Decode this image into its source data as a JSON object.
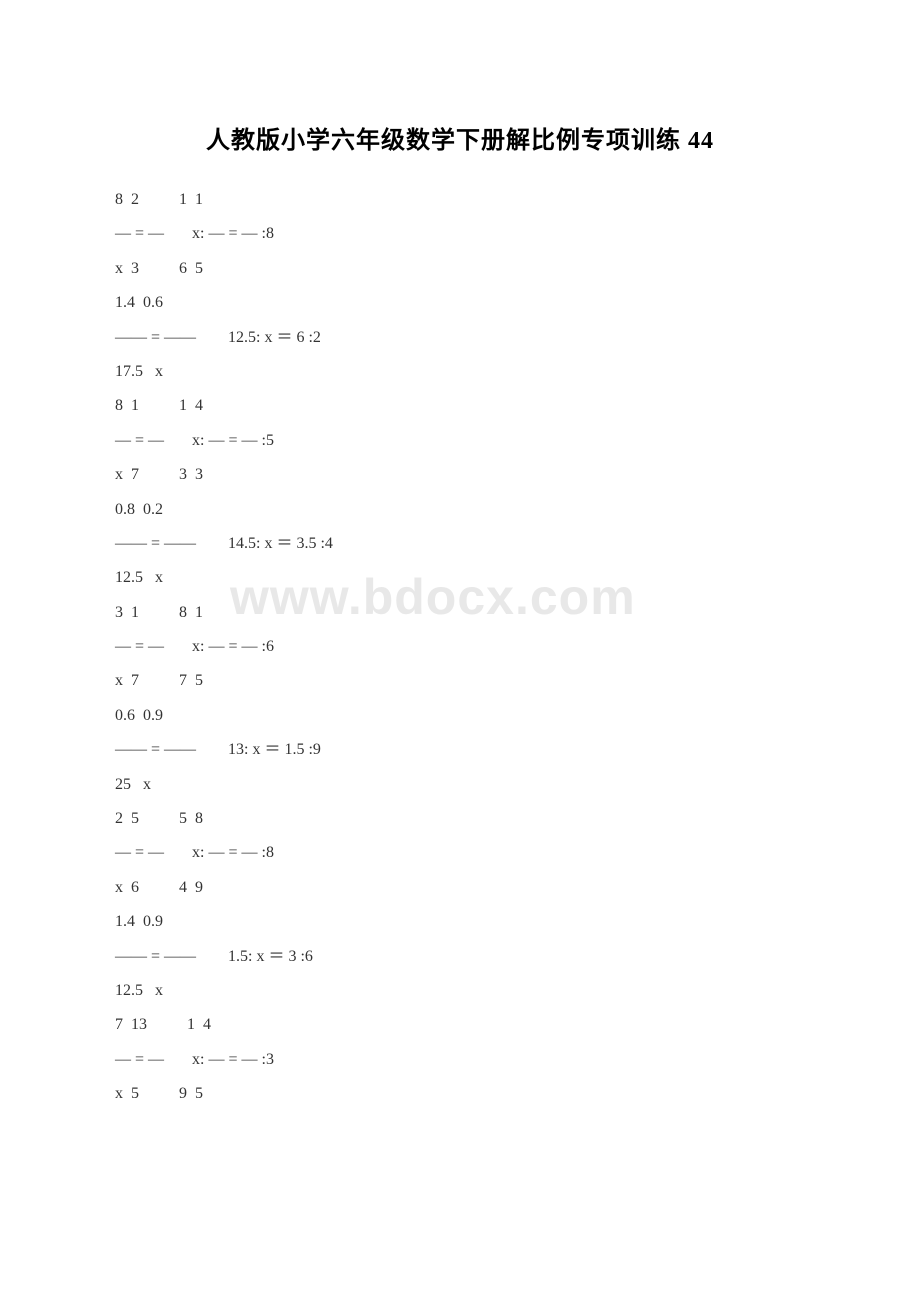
{
  "title": "人教版小学六年级数学下册解比例专项训练 44",
  "watermark": "www.bdocx.com",
  "lines": [
    "8  2          1  1",
    "— = —       x: — = — :8",
    "x  3          6  5",
    "1.4  0.6",
    "—— = ——        12.5: x ＝ 6 :2",
    "17.5   x",
    "8  1          1  4",
    "— = —       x: — = — :5",
    "x  7          3  3",
    "0.8  0.2",
    "—— = ——        14.5: x ＝ 3.5 :4",
    "12.5   x",
    "3  1          8  1",
    "— = —       x: — = — :6",
    "x  7          7  5",
    "0.6  0.9",
    "—— = ——        13: x ＝ 1.5 :9",
    "25   x",
    "2  5          5  8",
    "— = —       x: — = — :8",
    "x  6          4  9",
    "1.4  0.9",
    "—— = ——        1.5: x ＝ 3 :6",
    "12.5   x",
    "7  13          1  4",
    "— = —       x: — = — :3",
    "x  5          9  5"
  ],
  "text_color": "#333333",
  "background_color": "#ffffff",
  "watermark_color": "#e8e8e8",
  "title_fontsize": 24,
  "body_fontsize": 16
}
